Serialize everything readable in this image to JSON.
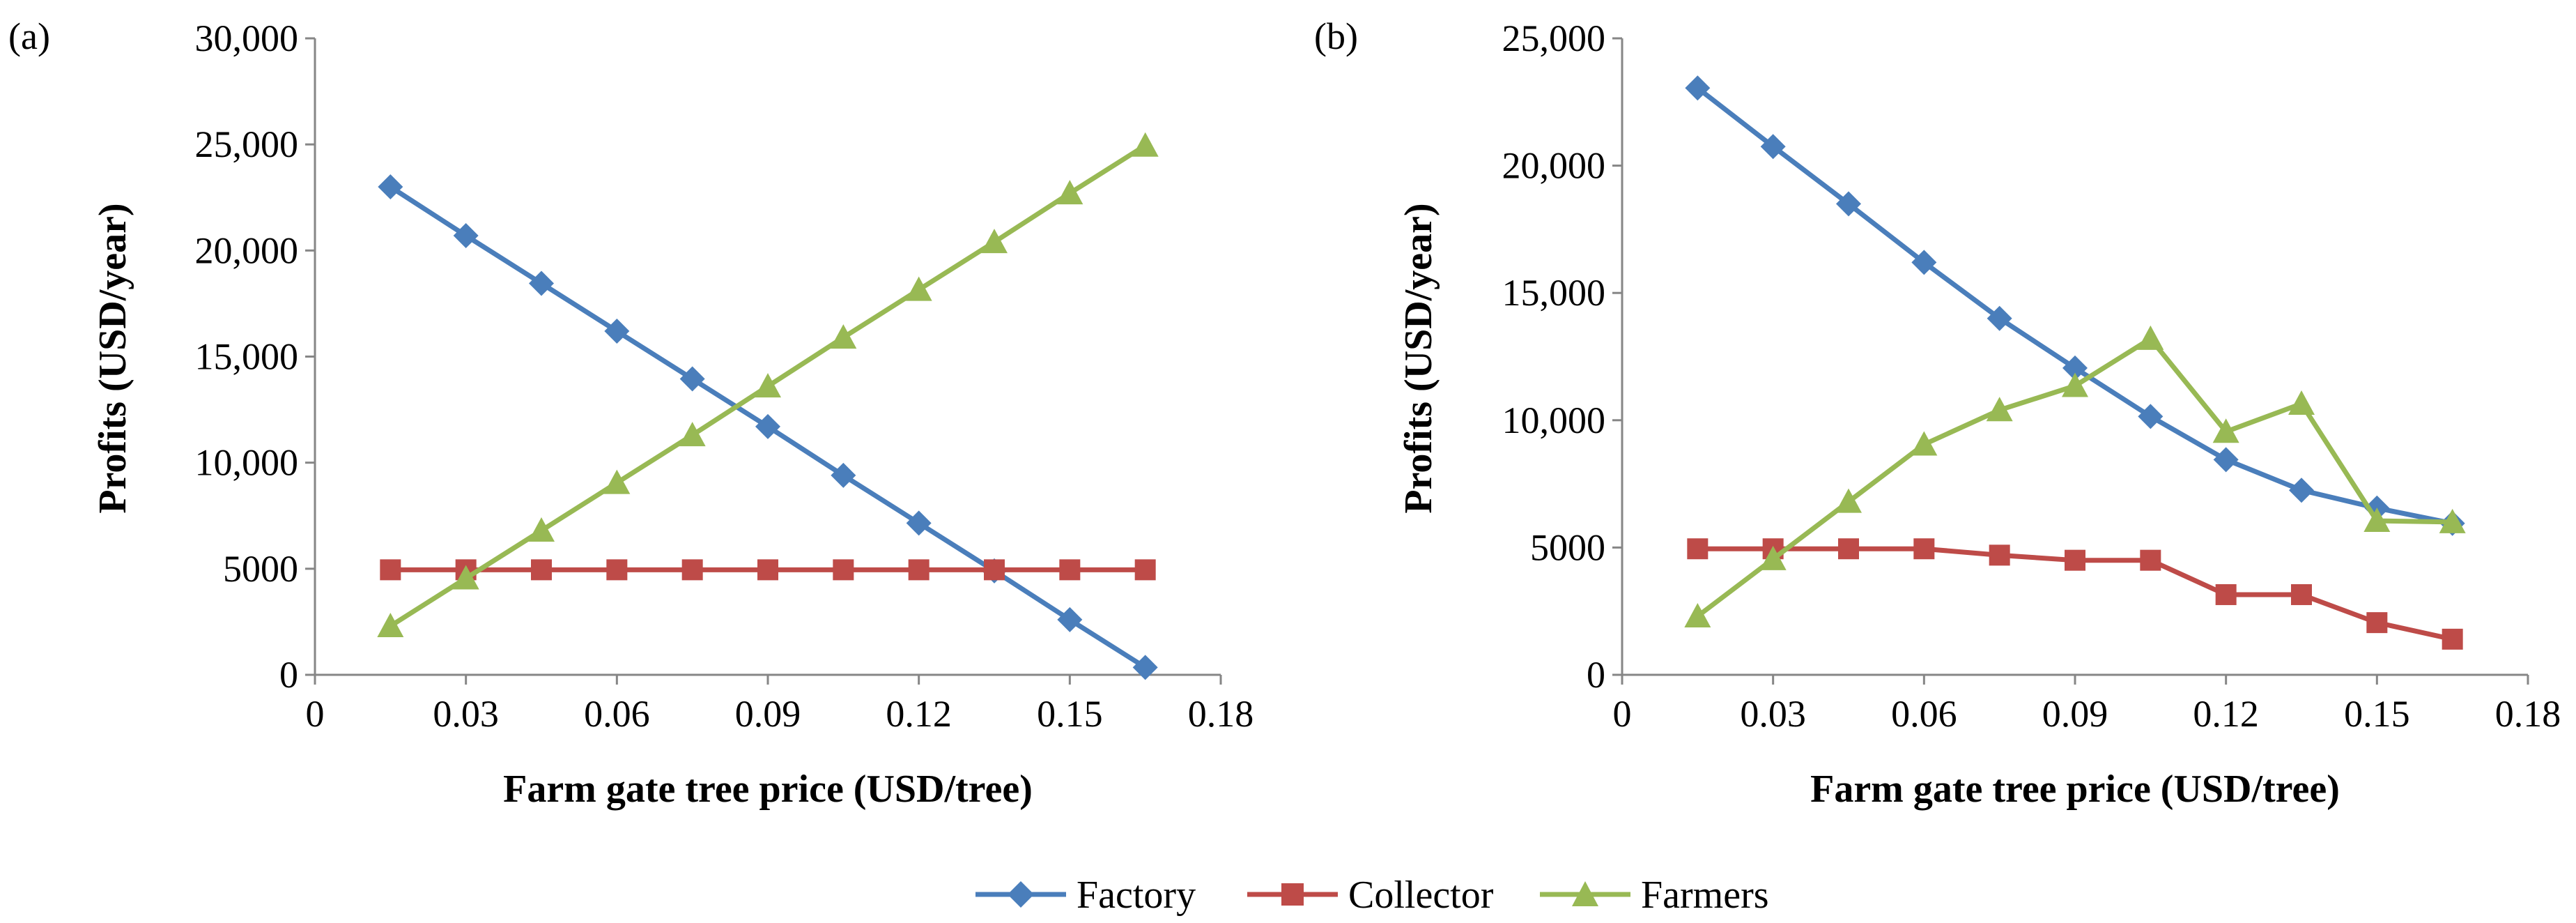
{
  "legend": [
    "Factory",
    "Collector",
    "Farmers"
  ],
  "colors": {
    "Factory": "#4a7ebb",
    "Collector": "#be4b48",
    "Farmers": "#98b954",
    "axis": "#868686",
    "background": "#ffffff"
  },
  "markers": {
    "Factory": "diamond",
    "Collector": "square",
    "Farmers": "triangle"
  },
  "chart_data": [
    {
      "type": "line",
      "panel_label": "(a)",
      "xlabel": "Farm gate tree price (USD/tree)",
      "ylabel": "Profits (USD/year)",
      "xlim": [
        0,
        0.18
      ],
      "ylim": [
        0,
        30000
      ],
      "x_ticks": [
        0,
        0.03,
        0.06,
        0.09,
        0.12,
        0.15,
        0.18
      ],
      "x_tick_labels": [
        "0",
        "0.03",
        "0.06",
        "0.09",
        "0.12",
        "0.15",
        "0.18"
      ],
      "y_ticks": [
        0,
        5000,
        10000,
        15000,
        20000,
        25000,
        30000
      ],
      "y_tick_labels": [
        "0",
        "5000",
        "10,000",
        "15,000",
        "20,000",
        "25,000",
        "30,000"
      ],
      "grid": false,
      "x": [
        0.015,
        0.03,
        0.045,
        0.06,
        0.075,
        0.09,
        0.105,
        0.12,
        0.135,
        0.15,
        0.165
      ],
      "series": [
        {
          "name": "Factory",
          "values": [
            23000,
            20700,
            18450,
            16200,
            13950,
            11700,
            9400,
            7150,
            4900,
            2600,
            350
          ]
        },
        {
          "name": "Collector",
          "values": [
            4950,
            4950,
            4950,
            4950,
            4950,
            4950,
            4950,
            4950,
            4950,
            4950,
            4950
          ]
        },
        {
          "name": "Farmers",
          "values": [
            2300,
            4550,
            6800,
            9050,
            11300,
            13600,
            15900,
            18150,
            20400,
            22700,
            24950
          ]
        }
      ]
    },
    {
      "type": "line",
      "panel_label": "(b)",
      "xlabel": "Farm gate tree price (USD/tree)",
      "ylabel": "Profits (USD/year)",
      "xlim": [
        0,
        0.18
      ],
      "ylim": [
        0,
        25000
      ],
      "x_ticks": [
        0,
        0.03,
        0.06,
        0.09,
        0.12,
        0.15,
        0.18
      ],
      "x_tick_labels": [
        "0",
        "0.03",
        "0.06",
        "0.09",
        "0.12",
        "0.15",
        "0.18"
      ],
      "y_ticks": [
        0,
        5000,
        10000,
        15000,
        20000,
        25000
      ],
      "y_tick_labels": [
        "0",
        "5000",
        "10,000",
        "15,000",
        "20,000",
        "25,000"
      ],
      "grid": false,
      "x": [
        0.015,
        0.03,
        0.045,
        0.06,
        0.075,
        0.09,
        0.105,
        0.12,
        0.135,
        0.15,
        0.165
      ],
      "series": [
        {
          "name": "Factory",
          "values": [
            23050,
            20750,
            18500,
            16200,
            14000,
            12050,
            10150,
            8450,
            7250,
            6550,
            5950
          ]
        },
        {
          "name": "Collector",
          "values": [
            4950,
            4950,
            4950,
            4950,
            4700,
            4500,
            4500,
            3150,
            3150,
            2050,
            1400
          ]
        },
        {
          "name": "Farmers",
          "values": [
            2300,
            4550,
            6800,
            9050,
            10400,
            11350,
            13200,
            9550,
            10650,
            6050,
            6000
          ]
        }
      ]
    }
  ]
}
